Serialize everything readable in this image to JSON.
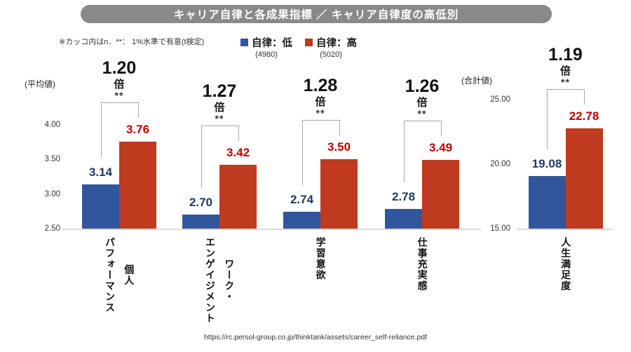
{
  "title": "キャリア自律と各成果指標 ／ キャリア自律度の高低別",
  "note": "※カッコ内はn．**： 1%水準で有意(t検定)",
  "source_url": "https://rc.persol-group.co.jp/thinktank/assets/career_self-reliance.pdf",
  "colors": {
    "title_bg": "#898989",
    "bar_low": "#31569B",
    "bar_high": "#BF3A1E",
    "label_low": "#1F3864",
    "label_high": "#C00000",
    "bracket": "#A6A6A6",
    "axis_line": "#D9D9D9"
  },
  "legend": {
    "items": [
      {
        "key": "low",
        "label": "自律：低",
        "n": "(4980)"
      },
      {
        "key": "high",
        "label": "自律：高",
        "n": "(5020)"
      }
    ]
  },
  "chart_data": {
    "type": "bar",
    "title": "キャリア自律と各成果指標 ／ キャリア自律度の高低別",
    "series": [
      {
        "name": "自律：低",
        "n": 4980,
        "values": [
          3.14,
          2.7,
          2.74,
          2.78,
          19.08
        ]
      },
      {
        "name": "自律：高",
        "n": 5020,
        "values": [
          3.76,
          3.42,
          3.5,
          3.49,
          22.78
        ]
      }
    ],
    "categories": [
      "個人パフォーマンス",
      "ワーク・エンゲイジメント",
      "学習意欲",
      "仕事充実感",
      "人生満足度"
    ],
    "ratio_unit": "倍",
    "left_axis": {
      "unit": "(平均値)",
      "min": 2.5,
      "max": 4.0,
      "ticks": [
        "4.00",
        "3.50",
        "3.00",
        "2.50"
      ]
    },
    "right_axis": {
      "unit": "(合計値)",
      "min": 15,
      "max": 25,
      "ticks": [
        "25.00",
        "20.00",
        "15.00"
      ]
    },
    "legend_position": "top",
    "grid": false,
    "groups": [
      {
        "category": "個人パフォーマンス",
        "category_lines": [
          "個人",
          "パフォーマンス"
        ],
        "low": 3.14,
        "high": 3.76,
        "ratio": "1.20",
        "sig": "**",
        "axis": "left"
      },
      {
        "category": "ワーク・エンゲイジメント",
        "category_lines": [
          "ワーク・",
          "エンゲイジメント"
        ],
        "low": 2.7,
        "high": 3.42,
        "ratio": "1.27",
        "sig": "**",
        "axis": "left"
      },
      {
        "category": "学習意欲",
        "category_lines": [
          "学習意欲"
        ],
        "low": 2.74,
        "high": 3.5,
        "ratio": "1.28",
        "sig": "**",
        "axis": "left"
      },
      {
        "category": "仕事充実感",
        "category_lines": [
          "仕事充実感"
        ],
        "low": 2.78,
        "high": 3.49,
        "ratio": "1.26",
        "sig": "**",
        "axis": "left"
      },
      {
        "category": "人生満足度",
        "category_lines": [
          "人生満足度"
        ],
        "low": 19.08,
        "high": 22.78,
        "ratio": "1.19",
        "sig": "**",
        "axis": "right"
      }
    ]
  }
}
